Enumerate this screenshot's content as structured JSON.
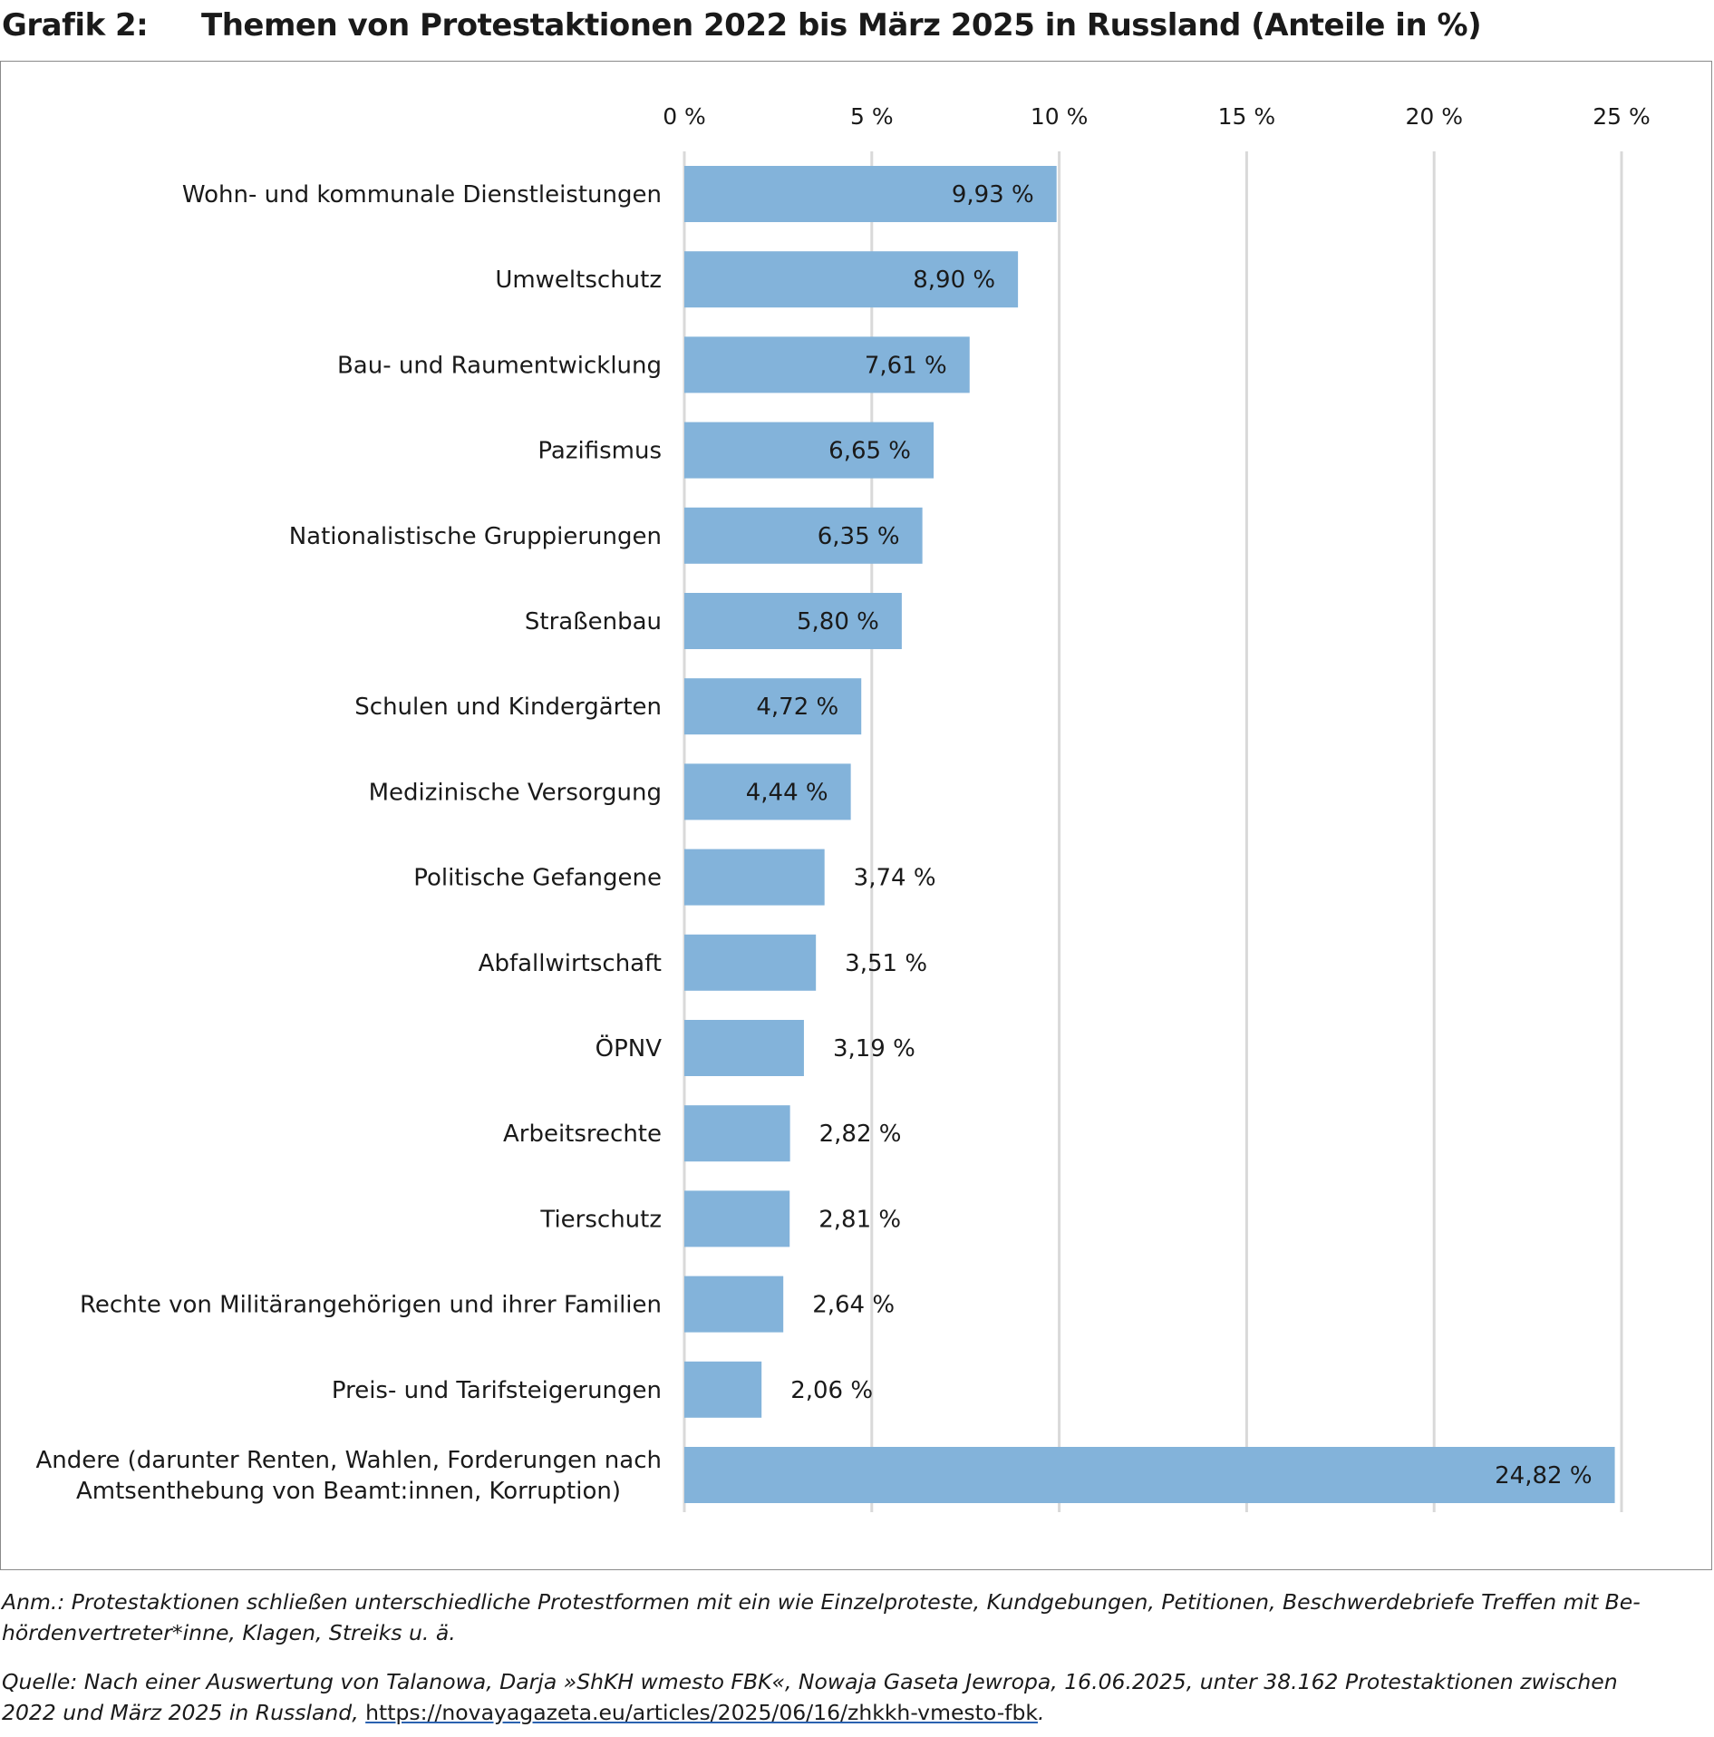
{
  "header": {
    "label": "Grafik 2:",
    "title": "Themen von Protestaktionen 2022 bis März 2025 in Russland (Anteile in %)"
  },
  "chart_data": {
    "type": "bar",
    "orientation": "horizontal",
    "title": "Themen von Protestaktionen 2022 bis März 2025 in Russland (Anteile in %)",
    "xlim": [
      0,
      25
    ],
    "x_ticks": [
      0,
      5,
      10,
      15,
      20,
      25
    ],
    "x_tick_labels": [
      "0 %",
      "5 %",
      "10 %",
      "15 %",
      "20 %",
      "25 %"
    ],
    "x_axis_position": "top",
    "grid": "vertical",
    "bar_color": "#83b3da",
    "categories": [
      [
        "Wohn- und kommunale Dienstleistungen"
      ],
      [
        "Umweltschutz"
      ],
      [
        "Bau- und Raumentwicklung"
      ],
      [
        "Pazifismus"
      ],
      [
        "Nationalistische Gruppierungen"
      ],
      [
        "Straßenbau"
      ],
      [
        "Schulen und Kindergärten"
      ],
      [
        "Medizinische Versorgung"
      ],
      [
        "Politische Gefangene"
      ],
      [
        "Abfallwirtschaft"
      ],
      [
        "ÖPNV"
      ],
      [
        "Arbeitsrechte"
      ],
      [
        "Tierschutz"
      ],
      [
        "Rechte von Militärangehörigen und ihrer Familien"
      ],
      [
        "Preis- und Tarifsteigerungen"
      ],
      [
        "Andere (darunter Renten, Wahlen, Forderungen nach",
        "Amtsenthebung von Beamt:innen, Korruption)"
      ]
    ],
    "values": [
      9.93,
      8.9,
      7.61,
      6.65,
      6.35,
      5.8,
      4.72,
      4.44,
      3.74,
      3.51,
      3.19,
      2.82,
      2.81,
      2.64,
      2.06,
      24.82
    ],
    "value_labels": [
      "9,93 %",
      "8,90 %",
      "7,61 %",
      "6,65 %",
      "6,35 %",
      "5,80 %",
      "4,72 %",
      "4,44 %",
      "3,74 %",
      "3,51 %",
      "3,19 %",
      "2,82 %",
      "2,81 %",
      "2,64 %",
      "2,06 %",
      "24,82 %"
    ]
  },
  "notes": {
    "anm_line1": "Anm.: Protestaktionen schließen unterschiedliche Protestformen mit ein wie Einzelproteste, Kundgebungen, Petitionen, Beschwerdebriefe Treffen mit Be-",
    "anm_line2": "hördenvertreter*inne, Klagen, Streiks u. ä.",
    "source_line1": "Quelle: Nach einer Auswertung von Talanowa, Darja »ShKH wmesto FBK«, Nowaja Gaseta Jewropa, 16.06.2025, unter 38.162 Protestaktionen zwischen",
    "source_line2": "2022 und März 2025 in Russland, ",
    "source_url": "https://novayagazeta.eu/articles/2025/06/16/zhkkh-vmesto-fbk",
    "source_end": "."
  }
}
